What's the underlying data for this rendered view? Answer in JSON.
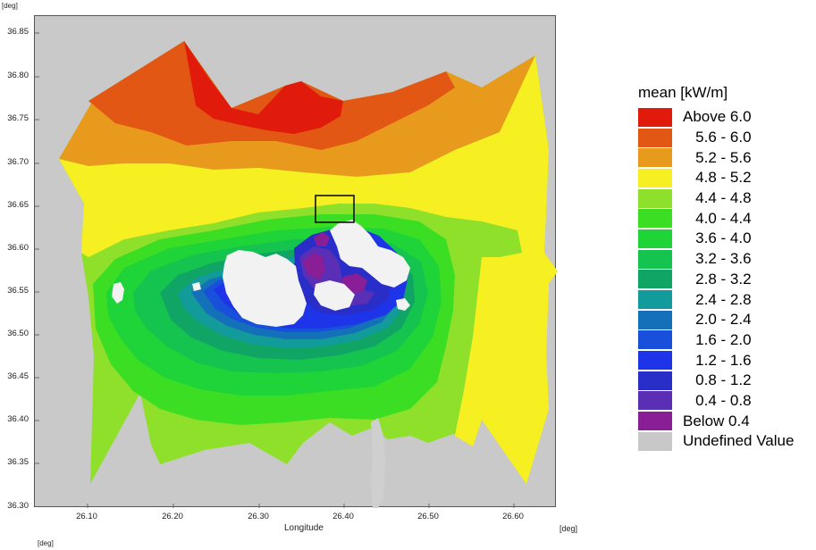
{
  "map": {
    "units": {
      "y_top": "[deg]",
      "x_right": "[deg]",
      "bottom_left": "[deg]"
    },
    "y_ticks": [
      "36.85",
      "36.80",
      "36.75",
      "36.70",
      "36.65",
      "36.60",
      "36.55",
      "36.50",
      "36.45",
      "36.40",
      "36.35",
      "36.30"
    ],
    "x_ticks": [
      "26.10",
      "26.20",
      "26.30",
      "26.40",
      "26.50",
      "26.60"
    ],
    "x_label": "Longitude",
    "y_range": [
      36.3,
      36.85
    ],
    "x_range": [
      26.04,
      26.64
    ]
  },
  "legend": {
    "title": "mean [kW/m]",
    "items": [
      {
        "label": "Above 6.0",
        "color": "#e01b0b"
      },
      {
        "label": "   5.6 - 6.0",
        "color": "#e35714"
      },
      {
        "label": "   5.2 - 5.6",
        "color": "#e89a1c"
      },
      {
        "label": "   4.8 - 5.2",
        "color": "#f6f023"
      },
      {
        "label": "   4.4 - 4.8",
        "color": "#8fe02a"
      },
      {
        "label": "   4.0 - 4.4",
        "color": "#3cde24"
      },
      {
        "label": "   3.6 - 4.0",
        "color": "#1ed439"
      },
      {
        "label": "   3.2 - 3.6",
        "color": "#14c44e"
      },
      {
        "label": "   2.8 - 3.2",
        "color": "#10a565"
      },
      {
        "label": "   2.4 - 2.8",
        "color": "#129b9a"
      },
      {
        "label": "   2.0 - 2.4",
        "color": "#1470b8"
      },
      {
        "label": "   1.6 - 2.0",
        "color": "#1850dc"
      },
      {
        "label": "   1.2 - 1.6",
        "color": "#1d34e8"
      },
      {
        "label": "   0.8 - 1.2",
        "color": "#2a2ec8"
      },
      {
        "label": "   0.4 - 0.8",
        "color": "#5a2fb5"
      },
      {
        "label": "Below 0.4",
        "color": "#8a1e96"
      },
      {
        "label": "Undefined Value",
        "color": "#c8c8c8"
      }
    ]
  }
}
